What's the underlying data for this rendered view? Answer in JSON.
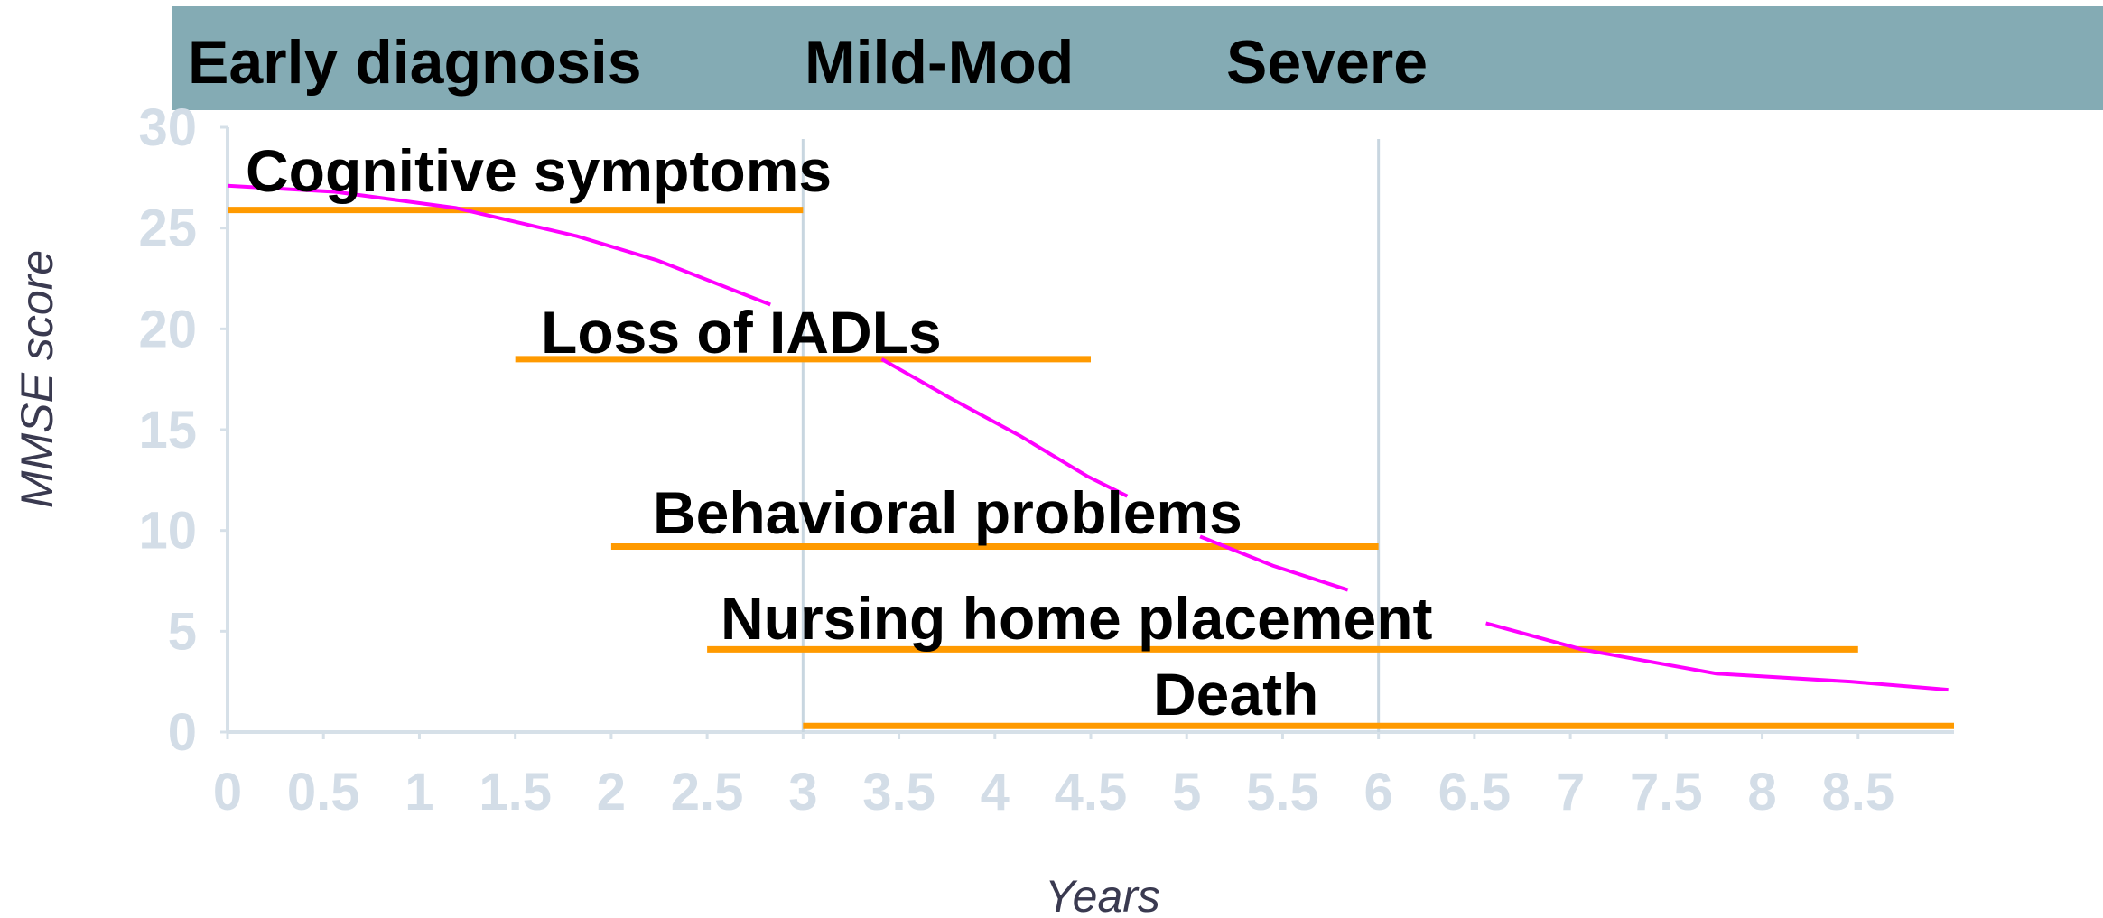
{
  "chart_data": {
    "type": "line",
    "stages": [
      "Early diagnosis",
      "Mild-Mod",
      "Severe"
    ],
    "dividers": [
      3,
      6
    ],
    "xlabel": "Years",
    "ylabel": "MMSE score",
    "xlim": [
      0,
      9
    ],
    "ylim": [
      0,
      30
    ],
    "xticks": [
      0,
      0.5,
      1,
      1.5,
      2,
      2.5,
      3,
      3.5,
      4,
      4.5,
      5,
      5.5,
      6,
      6.5,
      7,
      7.5,
      8,
      8.5
    ],
    "yticks": [
      0,
      5,
      10,
      15,
      20,
      25,
      30
    ],
    "series": [
      {
        "color": "#ff00ff",
        "x": [
          0,
          0.56,
          1.19,
          1.82,
          2.24,
          2.83,
          null,
          3.41,
          3.78,
          4.13,
          4.48,
          4.69,
          null,
          5.07,
          5.45,
          5.84,
          null,
          6.56,
          7.06,
          7.76,
          8.46,
          8.97
        ],
        "values": [
          27.1,
          26.8,
          26.0,
          24.6,
          23.4,
          21.2,
          null,
          18.5,
          16.5,
          14.7,
          12.7,
          11.7,
          null,
          9.7,
          8.25,
          7.05,
          null,
          5.4,
          4.1,
          2.9,
          2.5,
          2.1
        ]
      }
    ],
    "ranges": {
      "color": "#ff9a00",
      "labels": [
        "Cognitive symptoms",
        "Loss of IADLs",
        "Behavioral problems",
        "Nursing home placement",
        "Death"
      ],
      "start": [
        0,
        1.5,
        2,
        2.5,
        3
      ],
      "end": [
        3,
        4.5,
        6,
        8.5,
        9
      ],
      "values": [
        25.9,
        18.5,
        9.2,
        4.1,
        0.3
      ]
    }
  }
}
